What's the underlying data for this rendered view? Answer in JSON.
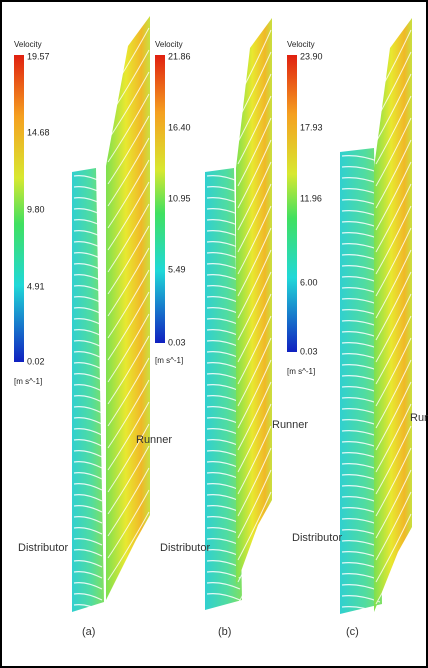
{
  "panels": [
    {
      "legend": {
        "title": "Velocity",
        "ticks": [
          "19.57",
          "14.68",
          "9.80",
          "4.91",
          "0.02"
        ],
        "unit": "[m s^-1]"
      },
      "runner_label": "Runner",
      "distributor_label": "Distributor",
      "caption": "(a)"
    },
    {
      "legend": {
        "title": "Velocity",
        "ticks": [
          "21.86",
          "16.40",
          "10.95",
          "5.49",
          "0.03"
        ],
        "unit": "[m s^-1]"
      },
      "runner_label": "Runner",
      "distributor_label": "Distributor",
      "caption": "(b)"
    },
    {
      "legend": {
        "title": "Velocity",
        "ticks": [
          "23.90",
          "17.93",
          "11.96",
          "6.00",
          "0.03"
        ],
        "unit": "[m s^-1]"
      },
      "runner_label": "Runner",
      "distributor_label": "Distributor",
      "caption": "(c)"
    }
  ]
}
